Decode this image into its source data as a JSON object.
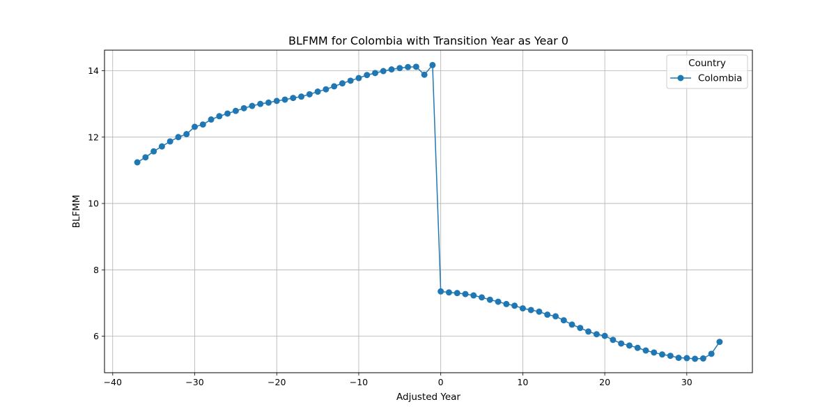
{
  "chart_data": {
    "type": "line",
    "title": "BLFMM for Colombia with Transition Year as Year 0",
    "xlabel": "Adjusted Year",
    "ylabel": "BLFMM",
    "xlim": [
      -41,
      38
    ],
    "ylim": [
      4.9,
      14.62
    ],
    "xticks": [
      -40,
      -30,
      -20,
      -10,
      0,
      10,
      20,
      30
    ],
    "xtick_labels": [
      "−40",
      "−30",
      "−20",
      "−10",
      "0",
      "10",
      "20",
      "30"
    ],
    "yticks": [
      6,
      8,
      10,
      12,
      14
    ],
    "ytick_labels": [
      "6",
      "8",
      "10",
      "12",
      "14"
    ],
    "grid": true,
    "legend": {
      "title": "Country",
      "placement": "top-right"
    },
    "series": [
      {
        "name": "Colombia",
        "color": "#1f77b4",
        "marker": "circle",
        "x": [
          -37,
          -36,
          -35,
          -34,
          -33,
          -32,
          -31,
          -30,
          -29,
          -28,
          -27,
          -26,
          -25,
          -24,
          -23,
          -22,
          -21,
          -20,
          -19,
          -18,
          -17,
          -16,
          -15,
          -14,
          -13,
          -12,
          -11,
          -10,
          -9,
          -8,
          -7,
          -6,
          -5,
          -4,
          -3,
          -2,
          -1,
          0,
          1,
          2,
          3,
          4,
          5,
          6,
          7,
          8,
          9,
          10,
          11,
          12,
          13,
          14,
          15,
          16,
          17,
          18,
          19,
          20,
          21,
          22,
          23,
          24,
          25,
          26,
          27,
          28,
          29,
          30,
          31,
          32,
          33,
          34
        ],
        "values": [
          11.24,
          11.39,
          11.57,
          11.72,
          11.87,
          12.0,
          12.09,
          12.31,
          12.38,
          12.53,
          12.63,
          12.71,
          12.79,
          12.87,
          12.94,
          13.0,
          13.04,
          13.09,
          13.13,
          13.18,
          13.22,
          13.29,
          13.37,
          13.44,
          13.53,
          13.62,
          13.7,
          13.78,
          13.87,
          13.93,
          13.99,
          14.04,
          14.08,
          14.11,
          14.12,
          13.88,
          14.17,
          7.35,
          7.32,
          7.3,
          7.27,
          7.23,
          7.17,
          7.1,
          7.04,
          6.97,
          6.92,
          6.84,
          6.79,
          6.74,
          6.65,
          6.6,
          6.48,
          6.35,
          6.25,
          6.14,
          6.06,
          6.01,
          5.89,
          5.78,
          5.72,
          5.65,
          5.57,
          5.51,
          5.45,
          5.41,
          5.35,
          5.34,
          5.32,
          5.33,
          5.47,
          5.83
        ]
      }
    ]
  }
}
